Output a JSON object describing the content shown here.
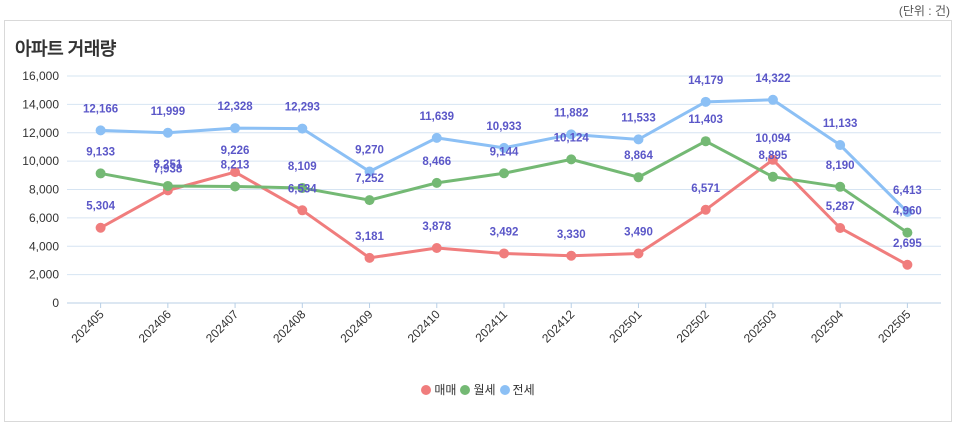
{
  "unit_note": "(단위 : 건)",
  "chart_data": {
    "type": "line",
    "title": "아파트 거래량",
    "xlabel": "",
    "ylabel": "",
    "ylim": [
      0,
      16000
    ],
    "yticks": [
      0,
      2000,
      4000,
      6000,
      8000,
      10000,
      12000,
      14000,
      16000
    ],
    "ytick_labels": [
      "0",
      "2,000",
      "4,000",
      "6,000",
      "8,000",
      "10,000",
      "12,000",
      "14,000",
      "16,000"
    ],
    "categories": [
      "202405",
      "202406",
      "202407",
      "202408",
      "202409",
      "202410",
      "202411",
      "202412",
      "202501",
      "202502",
      "202503",
      "202504",
      "202505"
    ],
    "grid": true,
    "legend_position": "bottom",
    "series": [
      {
        "name": "매매",
        "color": "#f07d7d",
        "values": [
          5304,
          7938,
          9226,
          6534,
          3181,
          3878,
          3492,
          3330,
          3490,
          6571,
          10094,
          5287,
          2695
        ],
        "labels": [
          "5,304",
          "7,938",
          "9,226",
          "6,534",
          "3,181",
          "3,878",
          "3,492",
          "3,330",
          "3,490",
          "6,571",
          "10,094",
          "5,287",
          "2,695"
        ]
      },
      {
        "name": "월세",
        "color": "#74b974",
        "values": [
          9133,
          8251,
          8213,
          8109,
          7252,
          8466,
          9144,
          10124,
          8864,
          11403,
          8895,
          8190,
          4960
        ],
        "labels": [
          "9,133",
          "8,251",
          "8,213",
          "8,109",
          "7,252",
          "8,466",
          "9,144",
          "10,124",
          "8,864",
          "11,403",
          "8,895",
          "8,190",
          "4,960"
        ]
      },
      {
        "name": "전세",
        "color": "#8cc0f5",
        "values": [
          12166,
          11999,
          12328,
          12293,
          9270,
          11639,
          10933,
          11882,
          11533,
          14179,
          14322,
          11133,
          6413
        ],
        "labels": [
          "12,166",
          "11,999",
          "12,328",
          "12,293",
          "9,270",
          "11,639",
          "10,933",
          "11,882",
          "11,533",
          "14,179",
          "14,322",
          "11,133",
          "6,413"
        ]
      }
    ]
  }
}
